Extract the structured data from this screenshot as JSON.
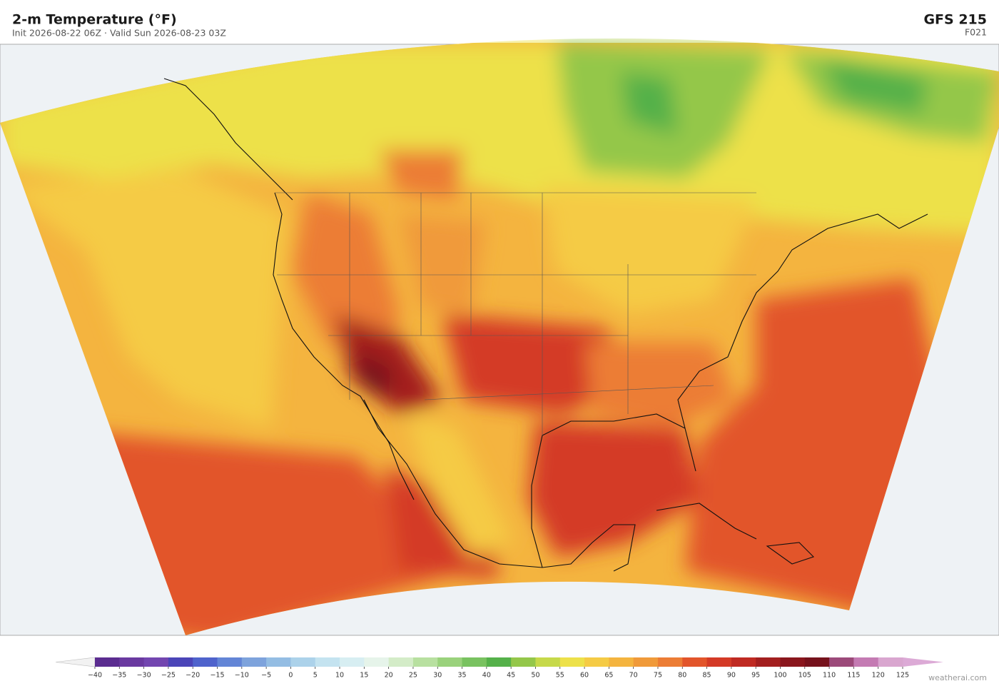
{
  "header": {
    "title": "2-m Temperature  (°F)",
    "subtitle": "Init 2026-08-22 06Z  ·  Valid Sun 2026-08-23 03Z",
    "model": "GFS  215",
    "forecast_hour": "F021"
  },
  "colorbar": {
    "ticks": [
      {
        "value": -40,
        "label": "−40"
      },
      {
        "value": -35,
        "label": "−35"
      },
      {
        "value": -30,
        "label": "−30"
      },
      {
        "value": -25,
        "label": "−25"
      },
      {
        "value": -20,
        "label": "−20"
      },
      {
        "value": -15,
        "label": "−15"
      },
      {
        "value": -10,
        "label": "−10"
      },
      {
        "value": -5,
        "label": "−5"
      },
      0,
      5,
      10,
      15,
      20,
      25,
      30,
      35,
      40,
      45,
      50,
      55,
      60,
      65,
      70,
      75,
      80,
      85,
      90,
      95,
      100,
      105,
      110,
      115,
      120,
      125
    ],
    "colors": [
      "#5b2d90",
      "#6a3aa0",
      "#7346b0",
      "#4b45b8",
      "#4f63cc",
      "#6385d6",
      "#7ea3dc",
      "#94bde3",
      "#acd2ea",
      "#c4e3f0",
      "#d7eef2",
      "#e6f4ea",
      "#d4ecc8",
      "#b8e0a0",
      "#9ad27c",
      "#79c260",
      "#55b14a",
      "#94c74a",
      "#c6d94a",
      "#ede14a",
      "#f5cb45",
      "#f4b43f",
      "#f09a3a",
      "#ec7d35",
      "#e2552b",
      "#d43a26",
      "#bf2a22",
      "#a31f1f",
      "#8a161d",
      "#76121c",
      "#9c4a7a",
      "#c47bb3",
      "#d9a6cf"
    ],
    "under_color": "#f2f2f2",
    "over_color": "#dcaad6"
  },
  "footer": {
    "credit": "weatherai.com"
  }
}
